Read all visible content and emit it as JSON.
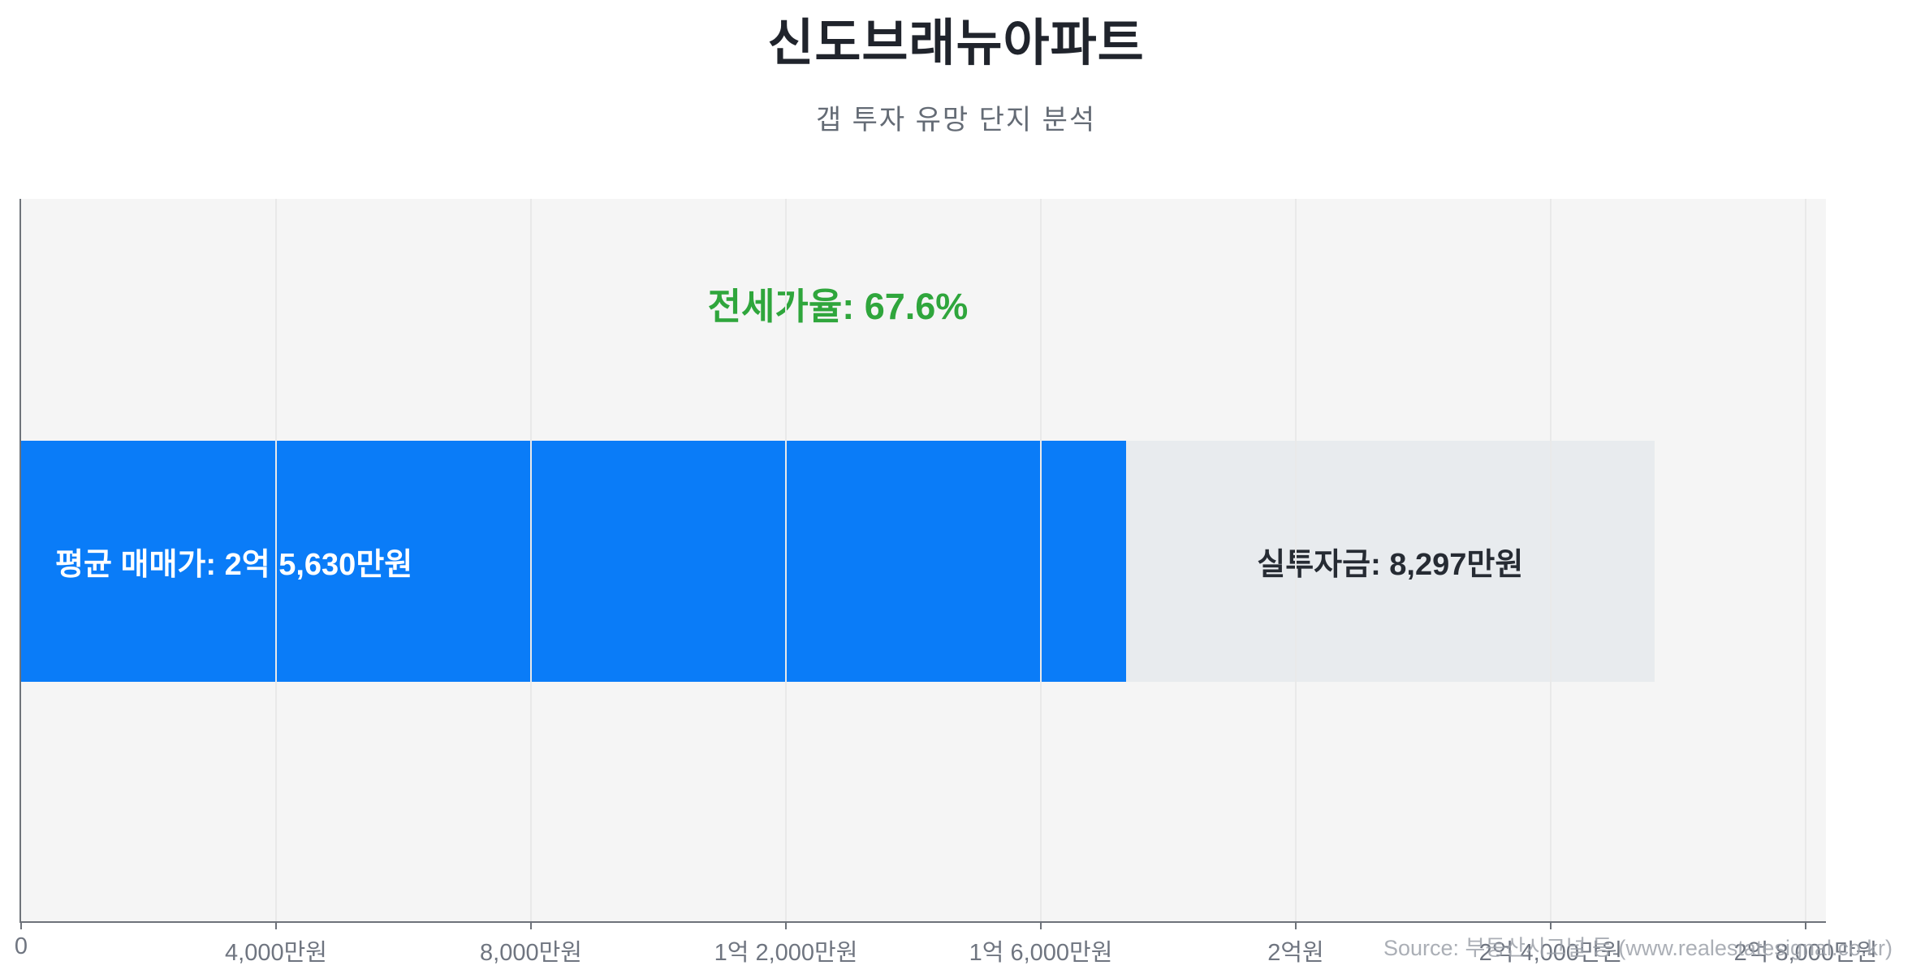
{
  "header": {
    "title": "신도브래뉴아파트",
    "subtitle": "갭 투자 유망 단지 분석"
  },
  "chart_data": {
    "type": "bar",
    "orientation": "horizontal",
    "stacked": true,
    "title": "신도브래뉴아파트",
    "subtitle": "갭 투자 유망 단지 분석",
    "unit": "만원",
    "metrics": {
      "avg_sale_price_manwon": 25630,
      "net_investment_manwon": 8297,
      "jeonse_ratio_pct": 67.6,
      "jeonse_price_manwon_derived": 17333
    },
    "axis": {
      "min": 0,
      "max": 28000,
      "tick_step": 4000,
      "tick_labels": [
        "0",
        "4,000만원",
        "8,000만원",
        "1억 2,000만원",
        "1억 6,000만원",
        "2억원",
        "2억 4,000만원",
        "2억 8,000만원"
      ],
      "grid": true
    },
    "segments": [
      {
        "name": "jeonse-portion",
        "value": 17333,
        "color": "#0a7cf8",
        "label": "평균 매매가: 2억 5,630만원",
        "label_color": "#ffffff",
        "label_align": "left"
      },
      {
        "name": "gap-investment",
        "value": 8297,
        "color": "#e8ebee",
        "label": "실투자금: 8,297만원",
        "label_color": "#262b33",
        "label_align": "center"
      }
    ],
    "annotation": {
      "text": "전세가율: 67.6%",
      "color": "#2fa63c"
    },
    "layout": {
      "background": "#f5f5f5",
      "legend": "none",
      "grid_on": true
    }
  },
  "watermark": {
    "text": "Source: 부동산시그널 등 (www.realestatesignal.co.kr)"
  },
  "colors": {
    "plot_bg": "#f5f5f5",
    "axis_line": "#6e737a",
    "gridline": "#e9e9e9",
    "tick_label": "#6f7580",
    "title": "#20242c",
    "subtitle": "#646b75",
    "watermark": "#9ca1a9",
    "bar_blue": "#0a7cf8",
    "bar_gray": "#e8ebee",
    "annotation_green": "#2fa63c"
  }
}
